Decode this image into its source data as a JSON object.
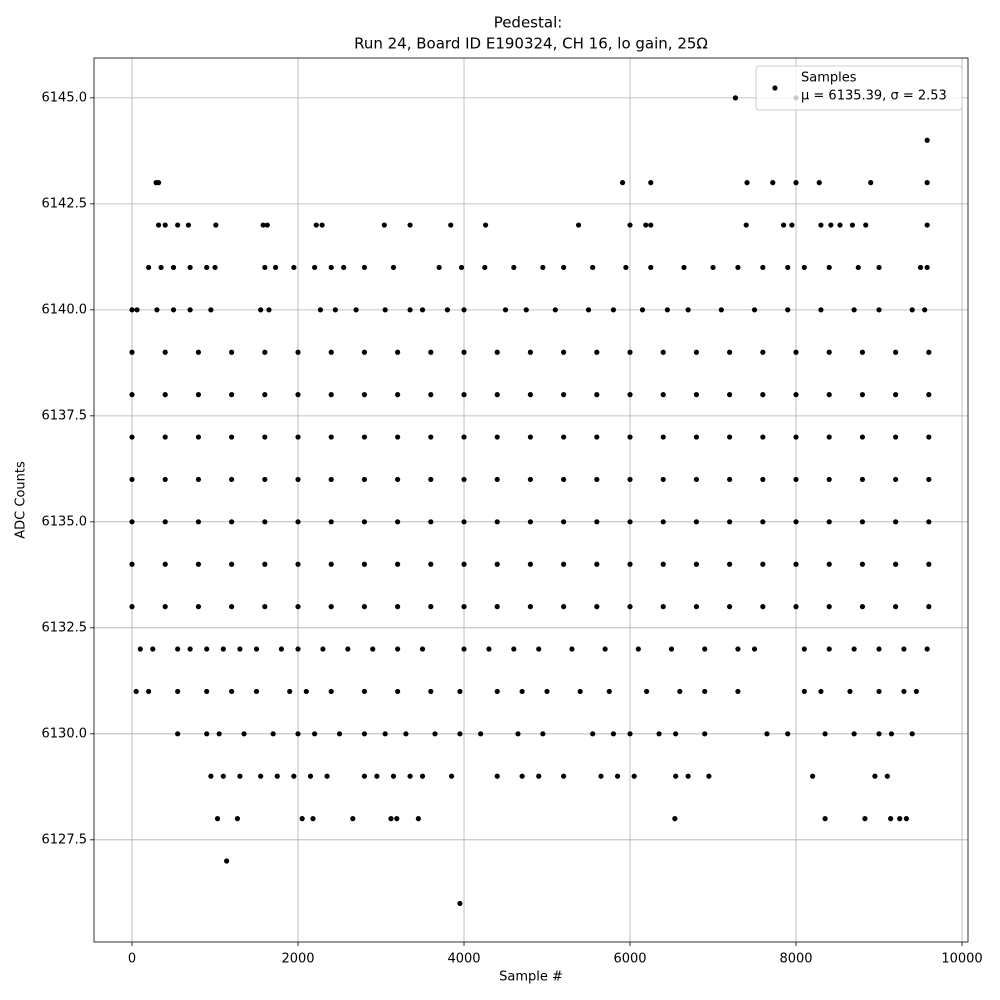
{
  "chart_data": {
    "type": "scatter",
    "title": "Pedestal:",
    "subtitle": "Run 24, Board ID E190324, CH 16, lo gain, 25Ω",
    "x_label": "Sample #",
    "y_label": "ADC Counts",
    "xlim": [
      -458,
      10072
    ],
    "ylim": [
      6125.09,
      6145.94
    ],
    "xticks": [
      0,
      2000,
      4000,
      6000,
      8000,
      10000
    ],
    "yticks": [
      6127.5,
      {
        "value": 6130,
        "label": "6130.0"
      },
      6132.5,
      {
        "value": 6135,
        "label": "6135.0"
      },
      6137.5,
      {
        "value": 6140,
        "label": "6140.0"
      },
      6142.5,
      {
        "value": 6145,
        "label": "6145.0"
      }
    ],
    "grid": true,
    "legend": "upper right",
    "series": [
      {
        "name": "Samples",
        "note": "μ = 6135.39, σ = 2.53",
        "color": "#000000",
        "x": [
          7270,
          8000,
          9580,
          290,
          320,
          5910,
          6250,
          7410,
          7720,
          8000,
          8280,
          8900,
          9580,
          320,
          400,
          550,
          680,
          1010,
          1580,
          1630,
          2220,
          2290,
          3040,
          3350,
          3840,
          4260,
          5380,
          6000,
          6190,
          6250,
          7400,
          7850,
          7950,
          8300,
          8420,
          8530,
          8680,
          8840,
          9580,
          200,
          350,
          500,
          700,
          900,
          1000,
          1600,
          1730,
          1950,
          2200,
          2400,
          2550,
          2800,
          3150,
          3700,
          3970,
          4250,
          4600,
          4950,
          5200,
          5550,
          5950,
          6250,
          6650,
          7000,
          7300,
          7600,
          7900,
          8100,
          8400,
          8750,
          9000,
          9500,
          9580,
          0,
          60,
          300,
          500,
          700,
          950,
          1550,
          1650,
          2270,
          2450,
          2700,
          3050,
          3350,
          3500,
          3800,
          4000,
          4500,
          4750,
          5100,
          5500,
          5800,
          6150,
          6450,
          6700,
          7100,
          7500,
          7900,
          8300,
          8700,
          9000,
          9400,
          9550,
          0,
          400,
          800,
          1200,
          1600,
          2000,
          2400,
          2800,
          3200,
          3600,
          4000,
          4400,
          4800,
          5200,
          5600,
          6000,
          6400,
          6800,
          7200,
          7600,
          8000,
          8400,
          8800,
          9200,
          9600,
          0,
          400,
          800,
          1200,
          1600,
          2000,
          2400,
          2800,
          3200,
          3600,
          4000,
          4400,
          4800,
          5200,
          5600,
          6000,
          6400,
          6800,
          7200,
          7600,
          8000,
          8400,
          8800,
          9200,
          9600,
          0,
          400,
          800,
          1200,
          1600,
          2000,
          2400,
          2800,
          3200,
          3600,
          4000,
          4400,
          4800,
          5200,
          5600,
          6000,
          6400,
          6800,
          7200,
          7600,
          8000,
          8400,
          8800,
          9200,
          9600,
          0,
          400,
          800,
          1200,
          1600,
          2000,
          2400,
          2800,
          3200,
          3600,
          4000,
          4400,
          4800,
          5200,
          5600,
          6000,
          6400,
          6800,
          7200,
          7600,
          8000,
          8400,
          8800,
          9200,
          9600,
          0,
          400,
          800,
          1200,
          1600,
          2000,
          2400,
          2800,
          3200,
          3600,
          4000,
          4400,
          4800,
          5200,
          5600,
          6000,
          6400,
          6800,
          7200,
          7600,
          8000,
          8400,
          8800,
          9200,
          9600,
          0,
          400,
          800,
          1200,
          1600,
          2000,
          2400,
          2800,
          3200,
          3600,
          4000,
          4400,
          4800,
          5200,
          5600,
          6000,
          6400,
          6800,
          7200,
          7600,
          8000,
          8400,
          8800,
          9200,
          9600,
          0,
          400,
          800,
          1200,
          1600,
          2000,
          2400,
          2800,
          3200,
          3600,
          4000,
          4400,
          4800,
          5200,
          5600,
          6000,
          6400,
          6800,
          7200,
          7600,
          8000,
          8400,
          8800,
          9200,
          9600,
          100,
          250,
          550,
          700,
          900,
          1100,
          1300,
          1500,
          1800,
          2000,
          2300,
          2600,
          2900,
          3200,
          3500,
          4000,
          4300,
          4600,
          4900,
          5300,
          5700,
          6100,
          6500,
          6900,
          7300,
          7500,
          8100,
          8400,
          8700,
          9000,
          9300,
          9580,
          50,
          200,
          550,
          900,
          1200,
          1500,
          1900,
          2100,
          2400,
          2800,
          3200,
          3600,
          3950,
          4400,
          4700,
          5000,
          5400,
          5750,
          6200,
          6600,
          6900,
          7300,
          8100,
          8300,
          8650,
          9000,
          9300,
          9450,
          550,
          900,
          1050,
          1350,
          1700,
          2000,
          2200,
          2500,
          2800,
          3050,
          3300,
          3650,
          3950,
          4200,
          4650,
          4950,
          5550,
          5800,
          6000,
          6350,
          6550,
          6900,
          7650,
          7900,
          8350,
          8700,
          9000,
          9150,
          9400,
          950,
          1100,
          1300,
          1550,
          1750,
          1950,
          2150,
          2350,
          2800,
          2950,
          3150,
          3350,
          3500,
          3850,
          4400,
          4700,
          4900,
          5200,
          5650,
          5850,
          6050,
          6550,
          6700,
          6950,
          8200,
          8950,
          9100,
          1030,
          1270,
          2050,
          2180,
          2660,
          3120,
          3190,
          3450,
          6540,
          8350,
          8830,
          9140,
          9250,
          9330,
          1140,
          3950
        ],
        "values": [
          6145,
          6145,
          6144,
          6143,
          6143,
          6143,
          6143,
          6143,
          6143,
          6143,
          6143,
          6143,
          6143,
          6142,
          6142,
          6142,
          6142,
          6142,
          6142,
          6142,
          6142,
          6142,
          6142,
          6142,
          6142,
          6142,
          6142,
          6142,
          6142,
          6142,
          6142,
          6142,
          6142,
          6142,
          6142,
          6142,
          6142,
          6142,
          6142,
          6141,
          6141,
          6141,
          6141,
          6141,
          6141,
          6141,
          6141,
          6141,
          6141,
          6141,
          6141,
          6141,
          6141,
          6141,
          6141,
          6141,
          6141,
          6141,
          6141,
          6141,
          6141,
          6141,
          6141,
          6141,
          6141,
          6141,
          6141,
          6141,
          6141,
          6141,
          6141,
          6141,
          6141,
          6140,
          6140,
          6140,
          6140,
          6140,
          6140,
          6140,
          6140,
          6140,
          6140,
          6140,
          6140,
          6140,
          6140,
          6140,
          6140,
          6140,
          6140,
          6140,
          6140,
          6140,
          6140,
          6140,
          6140,
          6140,
          6140,
          6140,
          6140,
          6140,
          6140,
          6140,
          6140,
          6139,
          6139,
          6139,
          6139,
          6139,
          6139,
          6139,
          6139,
          6139,
          6139,
          6139,
          6139,
          6139,
          6139,
          6139,
          6139,
          6139,
          6139,
          6139,
          6139,
          6139,
          6139,
          6139,
          6139,
          6139,
          6138,
          6138,
          6138,
          6138,
          6138,
          6138,
          6138,
          6138,
          6138,
          6138,
          6138,
          6138,
          6138,
          6138,
          6138,
          6138,
          6138,
          6138,
          6138,
          6138,
          6138,
          6138,
          6138,
          6138,
          6138,
          6137,
          6137,
          6137,
          6137,
          6137,
          6137,
          6137,
          6137,
          6137,
          6137,
          6137,
          6137,
          6137,
          6137,
          6137,
          6137,
          6137,
          6137,
          6137,
          6137,
          6137,
          6137,
          6137,
          6137,
          6137,
          6136,
          6136,
          6136,
          6136,
          6136,
          6136,
          6136,
          6136,
          6136,
          6136,
          6136,
          6136,
          6136,
          6136,
          6136,
          6136,
          6136,
          6136,
          6136,
          6136,
          6136,
          6136,
          6136,
          6136,
          6136,
          6135,
          6135,
          6135,
          6135,
          6135,
          6135,
          6135,
          6135,
          6135,
          6135,
          6135,
          6135,
          6135,
          6135,
          6135,
          6135,
          6135,
          6135,
          6135,
          6135,
          6135,
          6135,
          6135,
          6135,
          6135,
          6134,
          6134,
          6134,
          6134,
          6134,
          6134,
          6134,
          6134,
          6134,
          6134,
          6134,
          6134,
          6134,
          6134,
          6134,
          6134,
          6134,
          6134,
          6134,
          6134,
          6134,
          6134,
          6134,
          6134,
          6134,
          6133,
          6133,
          6133,
          6133,
          6133,
          6133,
          6133,
          6133,
          6133,
          6133,
          6133,
          6133,
          6133,
          6133,
          6133,
          6133,
          6133,
          6133,
          6133,
          6133,
          6133,
          6133,
          6133,
          6133,
          6133,
          6132,
          6132,
          6132,
          6132,
          6132,
          6132,
          6132,
          6132,
          6132,
          6132,
          6132,
          6132,
          6132,
          6132,
          6132,
          6132,
          6132,
          6132,
          6132,
          6132,
          6132,
          6132,
          6132,
          6132,
          6132,
          6132,
          6132,
          6132,
          6132,
          6132,
          6132,
          6132,
          6131,
          6131,
          6131,
          6131,
          6131,
          6131,
          6131,
          6131,
          6131,
          6131,
          6131,
          6131,
          6131,
          6131,
          6131,
          6131,
          6131,
          6131,
          6131,
          6131,
          6131,
          6131,
          6131,
          6131,
          6131,
          6131,
          6131,
          6131,
          6130,
          6130,
          6130,
          6130,
          6130,
          6130,
          6130,
          6130,
          6130,
          6130,
          6130,
          6130,
          6130,
          6130,
          6130,
          6130,
          6130,
          6130,
          6130,
          6130,
          6130,
          6130,
          6130,
          6130,
          6130,
          6130,
          6130,
          6130,
          6130,
          6129,
          6129,
          6129,
          6129,
          6129,
          6129,
          6129,
          6129,
          6129,
          6129,
          6129,
          6129,
          6129,
          6129,
          6129,
          6129,
          6129,
          6129,
          6129,
          6129,
          6129,
          6129,
          6129,
          6129,
          6129,
          6129,
          6129,
          6128,
          6128,
          6128,
          6128,
          6128,
          6128,
          6128,
          6128,
          6128,
          6128,
          6128,
          6128,
          6128,
          6128,
          6127,
          6126
        ]
      }
    ]
  }
}
